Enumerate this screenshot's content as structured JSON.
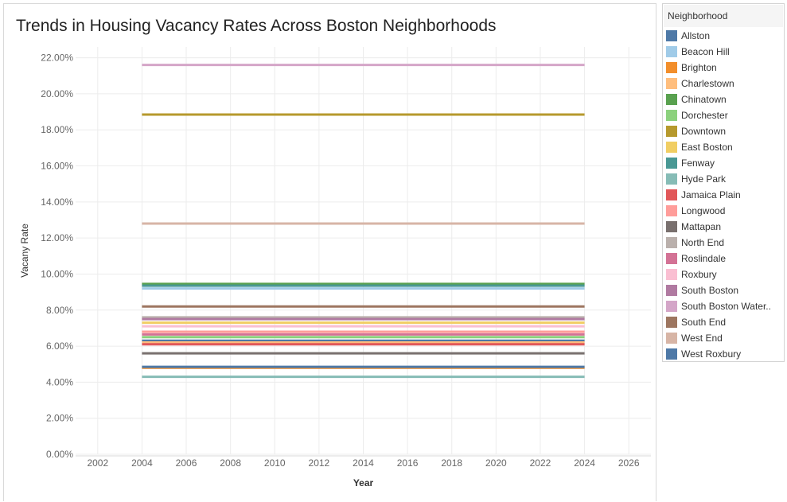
{
  "chart_data": {
    "type": "line",
    "title": "Trends in Housing Vacancy Rates Across Boston Neighborhoods",
    "xlabel": "Year",
    "ylabel": "Vacany Rate",
    "x": [
      2004,
      2024
    ],
    "xlim": [
      2001,
      2027
    ],
    "xticks": [
      "2002",
      "2004",
      "2006",
      "2008",
      "2010",
      "2012",
      "2014",
      "2016",
      "2018",
      "2020",
      "2022",
      "2024",
      "2026"
    ],
    "ylim": [
      0,
      22.6
    ],
    "yticks": [
      "0.00%",
      "2.00%",
      "4.00%",
      "6.00%",
      "8.00%",
      "10.00%",
      "12.00%",
      "14.00%",
      "16.00%",
      "18.00%",
      "20.00%",
      "22.00%"
    ],
    "grid": true,
    "legend_title": "Neighborhood",
    "legend_position": "right",
    "series": [
      {
        "name": "Allston",
        "color": "#4e79a7",
        "values": [
          6.3,
          6.3
        ]
      },
      {
        "name": "Beacon Hill",
        "color": "#a0cbe8",
        "values": [
          9.2,
          9.2
        ]
      },
      {
        "name": "Brighton",
        "color": "#f28e2b",
        "values": [
          4.8,
          4.8
        ]
      },
      {
        "name": "Charlestown",
        "color": "#ffbe7d",
        "values": [
          6.2,
          6.2
        ]
      },
      {
        "name": "Chinatown",
        "color": "#59a14f",
        "values": [
          9.45,
          9.45
        ]
      },
      {
        "name": "Dorchester",
        "color": "#8cd17d",
        "values": [
          6.5,
          6.5
        ]
      },
      {
        "name": "Downtown",
        "color": "#b6992d",
        "values": [
          18.85,
          18.85
        ]
      },
      {
        "name": "East Boston",
        "color": "#f1ce63",
        "values": [
          7.3,
          7.3
        ]
      },
      {
        "name": "Fenway",
        "color": "#499894",
        "values": [
          9.35,
          9.35
        ]
      },
      {
        "name": "Hyde Park",
        "color": "#86bcb6",
        "values": [
          4.3,
          4.3
        ]
      },
      {
        "name": "Jamaica Plain",
        "color": "#e15759",
        "values": [
          6.1,
          6.1
        ]
      },
      {
        "name": "Longwood",
        "color": "#ff9d9a",
        "values": [
          6.8,
          6.8
        ]
      },
      {
        "name": "Mattapan",
        "color": "#79706e",
        "values": [
          5.6,
          5.6
        ]
      },
      {
        "name": "North End",
        "color": "#bab0ac",
        "values": [
          7.6,
          7.6
        ]
      },
      {
        "name": "Roslindale",
        "color": "#d37295",
        "values": [
          6.65,
          6.65
        ]
      },
      {
        "name": "Roxbury",
        "color": "#fabfd2",
        "values": [
          7.1,
          7.1
        ]
      },
      {
        "name": "South Boston",
        "color": "#b07aa1",
        "values": [
          7.5,
          7.5
        ]
      },
      {
        "name": "South Boston Water..",
        "color": "#d4a6c8",
        "values": [
          21.6,
          21.6
        ]
      },
      {
        "name": "South End",
        "color": "#9d7660",
        "values": [
          8.2,
          8.2
        ]
      },
      {
        "name": "West End",
        "color": "#d7b5a6",
        "values": [
          12.8,
          12.8
        ]
      },
      {
        "name": "West Roxbury",
        "color": "#4e79a7",
        "values": [
          4.85,
          4.85
        ]
      }
    ]
  }
}
